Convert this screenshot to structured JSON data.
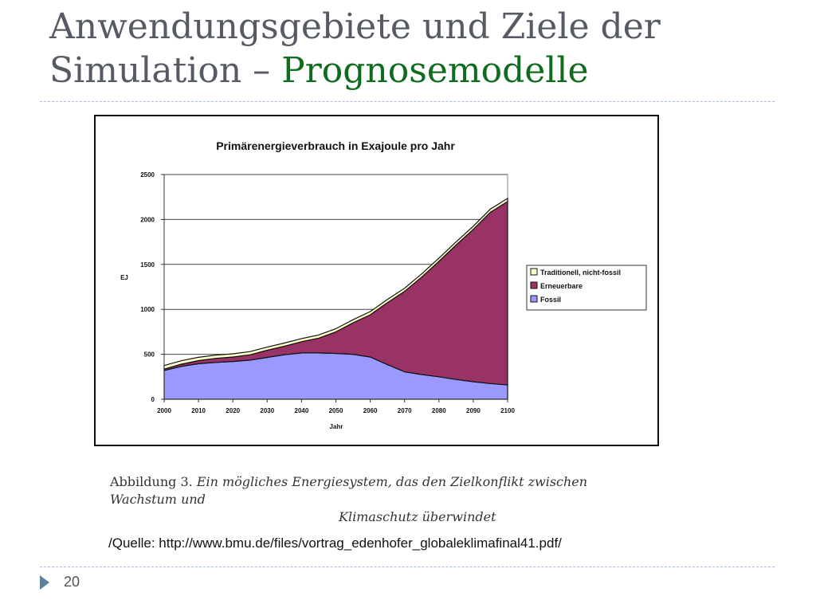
{
  "slide": {
    "title_line1": "Anwendungsgebiete und Ziele der",
    "title_line2_prefix": "Simulation – ",
    "title_line2_accent": "Prognosemodelle",
    "caption_label": "Abbildung 3.",
    "caption_text_1": "Ein mögliches Energiesystem, das den Zielkonflikt zwischen Wachstum und",
    "caption_text_2": "Klimaschutz überwindet",
    "source": "/Quelle: http://www.bmu.de/files/vortrag_edenhofer_globaleklimafinal41.pdf/",
    "page_number": "20"
  },
  "colors": {
    "title_accent": "#0f6b1e",
    "fossil": "#9999ff",
    "erneuerbare": "#993366",
    "traditionell": "#ffffcc"
  },
  "chart_data": {
    "type": "area",
    "stacked": true,
    "title": "Primärenergieverbrauch in Exajoule pro Jahr",
    "xlabel": "Jahr",
    "ylabel": "EJ",
    "x": [
      2000,
      2005,
      2010,
      2015,
      2020,
      2025,
      2030,
      2035,
      2040,
      2045,
      2050,
      2055,
      2060,
      2065,
      2070,
      2075,
      2080,
      2085,
      2090,
      2095,
      2100
    ],
    "xticks": [
      2000,
      2010,
      2020,
      2030,
      2040,
      2050,
      2060,
      2070,
      2080,
      2090,
      2100
    ],
    "ylim": [
      0,
      2500
    ],
    "yticks": [
      0,
      500,
      1000,
      1500,
      2000,
      2500
    ],
    "grid": true,
    "legend_position": "right",
    "series": [
      {
        "name": "Fossil",
        "color": "#9999ff",
        "values": [
          320,
          365,
          395,
          410,
          420,
          435,
          465,
          495,
          515,
          515,
          510,
          500,
          470,
          385,
          305,
          275,
          250,
          220,
          195,
          175,
          160
        ]
      },
      {
        "name": "Erneuerbare",
        "color": "#993366",
        "values": [
          15,
          25,
          35,
          45,
          50,
          60,
          80,
          95,
          125,
          165,
          240,
          350,
          470,
          690,
          895,
          1085,
          1285,
          1495,
          1695,
          1905,
          2040
        ]
      },
      {
        "name": "Traditionell, nicht-fossil",
        "color": "#ffffcc",
        "values": [
          40,
          38,
          36,
          35,
          35,
          35,
          35,
          35,
          35,
          35,
          35,
          35,
          35,
          35,
          35,
          35,
          35,
          35,
          35,
          35,
          35
        ]
      }
    ],
    "legend_order": [
      "Traditionell, nicht-fossil",
      "Erneuerbare",
      "Fossil"
    ]
  }
}
